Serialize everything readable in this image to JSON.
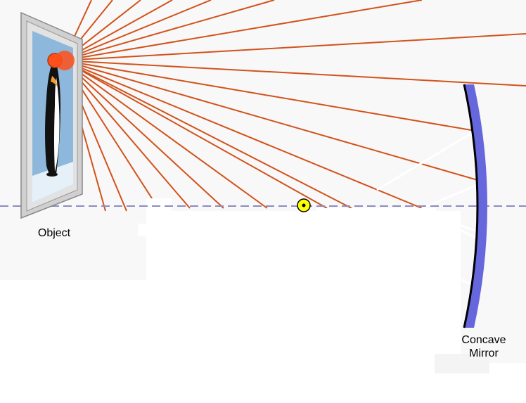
{
  "labels": {
    "object": "Object",
    "mirror_line1": "Concave",
    "mirror_line2": "Mirror"
  },
  "colors": {
    "background": "#f8f8f8",
    "ray": "#d2521b",
    "object_point": "#ff4f1a",
    "mirror_face": "#6666dd",
    "optical_axis": "#8c8cc0",
    "focal_point": "#ffff00",
    "frame": "#c8c8c8",
    "sky": "#8db8dc",
    "snow": "#e6f0f8"
  },
  "icons": {
    "object_picture": "framed-penguin-picture",
    "focal_point": "focal-point-marker"
  }
}
